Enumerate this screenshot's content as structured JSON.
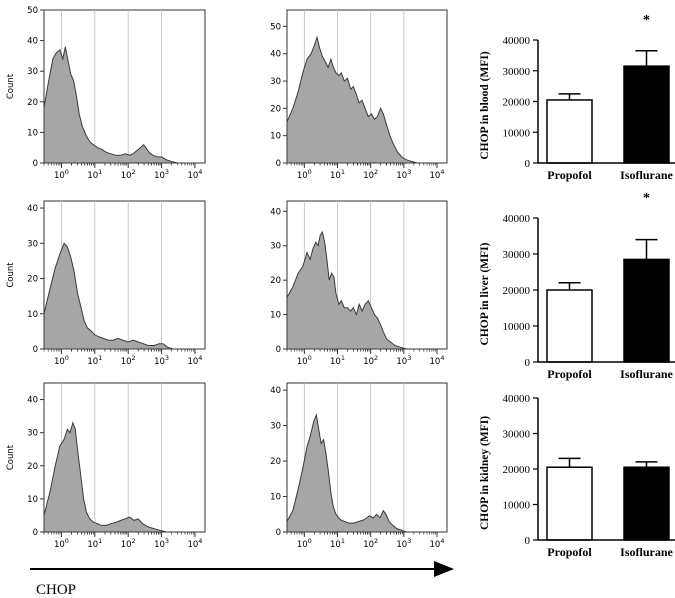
{
  "figure": {
    "x_axis_label": "CHOP"
  },
  "chart_data": [
    {
      "type": "area",
      "name": "hist-blood-propofol",
      "ylabel": "Count",
      "xscale": "log",
      "xlim": [
        0.3,
        20000
      ],
      "ylim": [
        0,
        50
      ],
      "y_ticks": [
        0,
        10,
        20,
        30,
        40,
        50
      ],
      "x_ticks": [
        "10^0",
        "10^1",
        "10^2",
        "10^3",
        "10^4"
      ],
      "points": [
        [
          0.3,
          18
        ],
        [
          0.4,
          26
        ],
        [
          0.55,
          34
        ],
        [
          0.7,
          36
        ],
        [
          0.9,
          37
        ],
        [
          1.1,
          34
        ],
        [
          1.3,
          38
        ],
        [
          1.6,
          33
        ],
        [
          1.9,
          29
        ],
        [
          2.3,
          27
        ],
        [
          2.8,
          22
        ],
        [
          3.4,
          16
        ],
        [
          4.2,
          12
        ],
        [
          5.5,
          9
        ],
        [
          7,
          7
        ],
        [
          9,
          6
        ],
        [
          12,
          5
        ],
        [
          16,
          4.5
        ],
        [
          22,
          3.5
        ],
        [
          30,
          3
        ],
        [
          42,
          2.5
        ],
        [
          60,
          2.5
        ],
        [
          85,
          3
        ],
        [
          110,
          2.5
        ],
        [
          140,
          3
        ],
        [
          180,
          4
        ],
        [
          230,
          5
        ],
        [
          290,
          6
        ],
        [
          340,
          5
        ],
        [
          420,
          3.5
        ],
        [
          550,
          2.5
        ],
        [
          750,
          2
        ],
        [
          1000,
          2
        ],
        [
          1400,
          1
        ],
        [
          2000,
          0.5
        ],
        [
          3000,
          0
        ]
      ]
    },
    {
      "type": "area",
      "name": "hist-blood-isoflurane",
      "ylabel": "",
      "xscale": "log",
      "xlim": [
        0.3,
        20000
      ],
      "ylim": [
        0,
        56
      ],
      "y_ticks": [
        0,
        10,
        20,
        30,
        40,
        50
      ],
      "x_ticks": [
        "10^0",
        "10^1",
        "10^2",
        "10^3",
        "10^4"
      ],
      "points": [
        [
          0.3,
          15
        ],
        [
          0.45,
          20
        ],
        [
          0.65,
          26
        ],
        [
          0.9,
          33
        ],
        [
          1.2,
          38
        ],
        [
          1.6,
          40
        ],
        [
          2,
          43
        ],
        [
          2.4,
          46
        ],
        [
          2.9,
          42
        ],
        [
          3.5,
          39
        ],
        [
          4.3,
          37
        ],
        [
          5.2,
          35
        ],
        [
          6.3,
          38
        ],
        [
          7.5,
          35
        ],
        [
          9,
          33
        ],
        [
          11,
          32
        ],
        [
          13,
          33
        ],
        [
          16,
          30
        ],
        [
          20,
          31
        ],
        [
          25,
          27
        ],
        [
          30,
          28
        ],
        [
          37,
          25
        ],
        [
          45,
          22
        ],
        [
          55,
          23
        ],
        [
          68,
          20
        ],
        [
          85,
          17
        ],
        [
          105,
          18
        ],
        [
          130,
          16
        ],
        [
          160,
          17
        ],
        [
          200,
          20
        ],
        [
          240,
          18
        ],
        [
          300,
          14
        ],
        [
          380,
          10
        ],
        [
          480,
          7
        ],
        [
          650,
          4
        ],
        [
          900,
          2
        ],
        [
          1300,
          1
        ],
        [
          1800,
          0.5
        ],
        [
          2500,
          0
        ]
      ]
    },
    {
      "type": "bar",
      "name": "bar-blood",
      "categories": [
        "Propofol",
        "Isoflurane"
      ],
      "values": [
        20500,
        31500
      ],
      "errors": [
        2000,
        5000
      ],
      "significance": [
        "",
        "*"
      ],
      "ylabel": "CHOP in blood (MFI)",
      "ylim": [
        0,
        40000
      ],
      "y_ticks": [
        0,
        10000,
        20000,
        30000,
        40000
      ]
    },
    {
      "type": "area",
      "name": "hist-liver-propofol",
      "ylabel": "Count",
      "xscale": "log",
      "xlim": [
        0.3,
        20000
      ],
      "ylim": [
        0,
        42
      ],
      "y_ticks": [
        0,
        10,
        20,
        30,
        40
      ],
      "x_ticks": [
        "10^0",
        "10^1",
        "10^2",
        "10^3",
        "10^4"
      ],
      "points": [
        [
          0.3,
          10
        ],
        [
          0.45,
          17
        ],
        [
          0.65,
          23
        ],
        [
          0.9,
          27
        ],
        [
          1.2,
          30
        ],
        [
          1.5,
          29
        ],
        [
          1.9,
          26
        ],
        [
          2.4,
          22
        ],
        [
          3,
          16
        ],
        [
          3.8,
          12
        ],
        [
          4.8,
          8
        ],
        [
          6,
          6
        ],
        [
          8,
          5
        ],
        [
          10,
          4
        ],
        [
          13,
          3.5
        ],
        [
          18,
          3
        ],
        [
          25,
          2.5
        ],
        [
          35,
          2.5
        ],
        [
          50,
          3
        ],
        [
          70,
          2.5
        ],
        [
          100,
          2
        ],
        [
          140,
          2.5
        ],
        [
          200,
          2
        ],
        [
          280,
          1.5
        ],
        [
          400,
          1
        ],
        [
          600,
          1
        ],
        [
          850,
          1.5
        ],
        [
          1100,
          1.5
        ],
        [
          1500,
          0.5
        ],
        [
          2200,
          0
        ]
      ]
    },
    {
      "type": "area",
      "name": "hist-liver-isoflurane",
      "ylabel": "",
      "xscale": "log",
      "xlim": [
        0.3,
        20000
      ],
      "ylim": [
        0,
        43
      ],
      "y_ticks": [
        0,
        10,
        20,
        30,
        40
      ],
      "x_ticks": [
        "10^0",
        "10^1",
        "10^2",
        "10^3",
        "10^4"
      ],
      "points": [
        [
          0.3,
          15
        ],
        [
          0.45,
          18
        ],
        [
          0.65,
          22
        ],
        [
          0.9,
          24
        ],
        [
          1.2,
          28
        ],
        [
          1.5,
          26
        ],
        [
          1.8,
          29
        ],
        [
          2.2,
          31
        ],
        [
          2.6,
          30
        ],
        [
          3,
          33
        ],
        [
          3.5,
          34
        ],
        [
          4.1,
          31
        ],
        [
          4.8,
          26
        ],
        [
          5.6,
          20
        ],
        [
          6.6,
          22
        ],
        [
          7.8,
          21
        ],
        [
          9,
          16
        ],
        [
          11,
          13
        ],
        [
          13,
          14
        ],
        [
          16,
          12
        ],
        [
          20,
          12
        ],
        [
          25,
          11
        ],
        [
          30,
          12
        ],
        [
          37,
          10
        ],
        [
          45,
          13
        ],
        [
          55,
          11
        ],
        [
          68,
          13
        ],
        [
          85,
          14
        ],
        [
          105,
          12
        ],
        [
          130,
          10
        ],
        [
          160,
          9
        ],
        [
          200,
          7
        ],
        [
          240,
          5
        ],
        [
          300,
          3
        ],
        [
          400,
          2
        ],
        [
          550,
          1
        ],
        [
          800,
          0.5
        ],
        [
          1200,
          0
        ]
      ]
    },
    {
      "type": "bar",
      "name": "bar-liver",
      "categories": [
        "Propofol",
        "Isoflurane"
      ],
      "values": [
        20000,
        28500
      ],
      "errors": [
        2000,
        5500
      ],
      "significance": [
        "",
        "*"
      ],
      "ylabel": "CHOP in liver (MFI)",
      "ylim": [
        0,
        40000
      ],
      "y_ticks": [
        0,
        10000,
        20000,
        30000,
        40000
      ]
    },
    {
      "type": "area",
      "name": "hist-kidney-propofol",
      "ylabel": "Count",
      "xscale": "log",
      "xlim": [
        0.3,
        20000
      ],
      "ylim": [
        0,
        45
      ],
      "y_ticks": [
        0,
        10,
        20,
        30,
        40
      ],
      "x_ticks": [
        "10^0",
        "10^1",
        "10^2",
        "10^3",
        "10^4"
      ],
      "points": [
        [
          0.3,
          5
        ],
        [
          0.45,
          12
        ],
        [
          0.65,
          20
        ],
        [
          0.9,
          26
        ],
        [
          1.2,
          28
        ],
        [
          1.5,
          31
        ],
        [
          1.8,
          30
        ],
        [
          2.2,
          33
        ],
        [
          2.6,
          31
        ],
        [
          3.1,
          24
        ],
        [
          3.8,
          17
        ],
        [
          4.6,
          10
        ],
        [
          5.6,
          6
        ],
        [
          7,
          4
        ],
        [
          9,
          3
        ],
        [
          12,
          2.5
        ],
        [
          16,
          2
        ],
        [
          22,
          2
        ],
        [
          30,
          2.5
        ],
        [
          45,
          3
        ],
        [
          60,
          3.5
        ],
        [
          80,
          4
        ],
        [
          110,
          4.5
        ],
        [
          150,
          3.5
        ],
        [
          200,
          4
        ],
        [
          270,
          2.5
        ],
        [
          400,
          1.5
        ],
        [
          600,
          1
        ],
        [
          900,
          0.5
        ],
        [
          1400,
          0
        ]
      ]
    },
    {
      "type": "area",
      "name": "hist-kidney-isoflurane",
      "ylabel": "",
      "xscale": "log",
      "xlim": [
        0.3,
        20000
      ],
      "ylim": [
        0,
        42
      ],
      "y_ticks": [
        0,
        10,
        20,
        30,
        40
      ],
      "x_ticks": [
        "10^0",
        "10^1",
        "10^2",
        "10^3",
        "10^4"
      ],
      "points": [
        [
          0.3,
          3
        ],
        [
          0.45,
          6
        ],
        [
          0.65,
          12
        ],
        [
          0.9,
          18
        ],
        [
          1.2,
          24
        ],
        [
          1.5,
          27
        ],
        [
          1.9,
          31
        ],
        [
          2.3,
          33
        ],
        [
          2.7,
          29
        ],
        [
          3.2,
          25
        ],
        [
          3.8,
          26
        ],
        [
          4.5,
          22
        ],
        [
          5.3,
          17
        ],
        [
          6.3,
          11
        ],
        [
          7.5,
          7
        ],
        [
          9,
          5
        ],
        [
          12,
          3.5
        ],
        [
          16,
          3
        ],
        [
          22,
          2.5
        ],
        [
          30,
          2.5
        ],
        [
          45,
          3
        ],
        [
          65,
          3.5
        ],
        [
          90,
          4.5
        ],
        [
          120,
          4
        ],
        [
          150,
          5
        ],
        [
          190,
          4
        ],
        [
          240,
          6
        ],
        [
          290,
          5
        ],
        [
          360,
          3
        ],
        [
          450,
          2
        ],
        [
          600,
          1
        ],
        [
          850,
          0.5
        ],
        [
          1200,
          0
        ]
      ]
    },
    {
      "type": "bar",
      "name": "bar-kidney",
      "categories": [
        "Propofol",
        "Isoflurane"
      ],
      "values": [
        20500,
        20500
      ],
      "errors": [
        2500,
        1500
      ],
      "significance": [
        "",
        ""
      ],
      "ylabel": "CHOP in kidney (MFI)",
      "ylim": [
        0,
        40000
      ],
      "y_ticks": [
        0,
        10000,
        20000,
        30000,
        40000
      ]
    }
  ]
}
